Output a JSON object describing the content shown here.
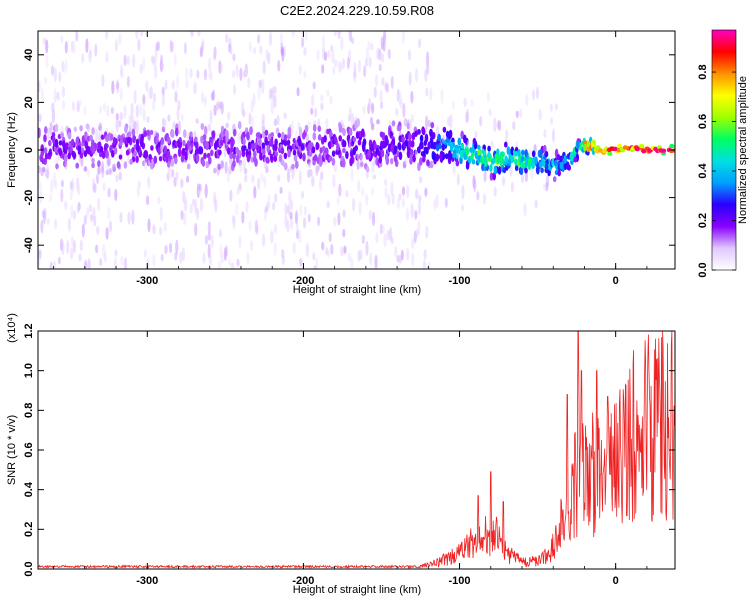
{
  "figure": {
    "title": "C2E2.2024.229.10.59.R08"
  },
  "chart_data": [
    {
      "type": "heatmap",
      "name": "spectrogram",
      "xlabel": "Height of straight line (km)",
      "ylabel": "Frequency (Hz)",
      "xlim": [
        -370,
        38
      ],
      "ylim": [
        -50,
        50
      ],
      "x_ticks": [
        -300,
        -200,
        -100,
        0
      ],
      "x_tick_labels": [
        "-300",
        "-200",
        "-100",
        "0"
      ],
      "y_ticks": [
        -40,
        -20,
        0,
        20,
        40
      ],
      "y_tick_labels": [
        "-40",
        "-20",
        "0",
        "20",
        "40"
      ],
      "colorbar": {
        "label": "Normalized spectral amplitude",
        "range": [
          0,
          0.97
        ],
        "ticks": [
          0.0,
          0.2,
          0.4,
          0.6,
          0.8
        ],
        "tick_labels": [
          "0.0",
          "0.2",
          "0.4",
          "0.6",
          "0.8"
        ],
        "colormap": [
          "#ffffff",
          "#e0c8ff",
          "#8800ff",
          "#2a00ff",
          "#00a0ff",
          "#00e0e0",
          "#00ff60",
          "#a0ff00",
          "#ffff00",
          "#ff9000",
          "#ff0000",
          "#ff00c0"
        ]
      },
      "ridge": [
        {
          "x": -370,
          "f": 1,
          "width": 8,
          "amp": 0.18
        },
        {
          "x": -300,
          "f": 1,
          "width": 8,
          "amp": 0.18
        },
        {
          "x": -200,
          "f": 1,
          "width": 8,
          "amp": 0.18
        },
        {
          "x": -130,
          "f": 2,
          "width": 8,
          "amp": 0.22
        },
        {
          "x": -110,
          "f": 2,
          "width": 6,
          "amp": 0.32
        },
        {
          "x": -100,
          "f": 0,
          "width": 5,
          "amp": 0.42
        },
        {
          "x": -90,
          "f": -2,
          "width": 4,
          "amp": 0.5
        },
        {
          "x": -80,
          "f": -5,
          "width": 4,
          "amp": 0.55
        },
        {
          "x": -70,
          "f": -3,
          "width": 4,
          "amp": 0.52
        },
        {
          "x": -60,
          "f": -5,
          "width": 4,
          "amp": 0.48
        },
        {
          "x": -50,
          "f": -5,
          "width": 4,
          "amp": 0.42
        },
        {
          "x": -40,
          "f": -7,
          "width": 4,
          "amp": 0.38
        },
        {
          "x": -30,
          "f": -4,
          "width": 3,
          "amp": 0.35
        },
        {
          "x": -25,
          "f": 1,
          "width": 2,
          "amp": 0.5
        },
        {
          "x": -20,
          "f": 2,
          "width": 2,
          "amp": 0.7
        },
        {
          "x": -10,
          "f": 0,
          "width": 1.5,
          "amp": 0.92
        },
        {
          "x": 0,
          "f": 0,
          "width": 1.5,
          "amp": 0.95
        },
        {
          "x": 5,
          "f": 1.5,
          "width": 1.5,
          "amp": 0.9
        },
        {
          "x": 10,
          "f": 1,
          "width": 1.5,
          "amp": 0.93
        },
        {
          "x": 20,
          "f": 0,
          "width": 1.5,
          "amp": 0.95
        },
        {
          "x": 38,
          "f": 0,
          "width": 1.5,
          "amp": 0.95
        }
      ]
    },
    {
      "type": "line",
      "name": "snr",
      "xlabel": "Height of straight line (km)",
      "ylabel": "SNR (10 * v/v)",
      "y_multiplier": "(x10⁴)",
      "xlim": [
        -370,
        38
      ],
      "ylim": [
        0,
        1.2
      ],
      "x_ticks": [
        -300,
        -200,
        -100,
        0
      ],
      "x_tick_labels": [
        "-300",
        "-200",
        "-100",
        "0"
      ],
      "y_ticks": [
        0.0,
        0.2,
        0.4,
        0.6,
        0.8,
        1.0,
        1.2
      ],
      "y_tick_labels": [
        "0.0",
        "0.2",
        "0.4",
        "0.6",
        "0.8",
        "1.0",
        "1.2"
      ],
      "color": "#ee2222",
      "envelope": [
        {
          "x": -370,
          "y": 0.01
        },
        {
          "x": -200,
          "y": 0.01
        },
        {
          "x": -130,
          "y": 0.01
        },
        {
          "x": -115,
          "y": 0.04
        },
        {
          "x": -100,
          "y": 0.1
        },
        {
          "x": -90,
          "y": 0.18
        },
        {
          "x": -80,
          "y": 0.25
        },
        {
          "x": -75,
          "y": 0.2
        },
        {
          "x": -70,
          "y": 0.1
        },
        {
          "x": -60,
          "y": 0.05
        },
        {
          "x": -50,
          "y": 0.05
        },
        {
          "x": -42,
          "y": 0.1
        },
        {
          "x": -35,
          "y": 0.3
        },
        {
          "x": -28,
          "y": 0.5
        },
        {
          "x": -22,
          "y": 0.72
        },
        {
          "x": -15,
          "y": 0.65
        },
        {
          "x": -8,
          "y": 0.55
        },
        {
          "x": 0,
          "y": 0.7
        },
        {
          "x": 10,
          "y": 0.85
        },
        {
          "x": 20,
          "y": 0.93
        },
        {
          "x": 30,
          "y": 0.97
        },
        {
          "x": 38,
          "y": 0.98
        }
      ],
      "spikes": [
        {
          "x": -80,
          "y": 0.49
        },
        {
          "x": -88,
          "y": 0.37
        },
        {
          "x": -72,
          "y": 0.34
        },
        {
          "x": -24,
          "y": 1.2
        },
        {
          "x": -22,
          "y": 1.0
        },
        {
          "x": -31,
          "y": 0.88
        },
        {
          "x": -12,
          "y": 1.0
        },
        {
          "x": -5,
          "y": 0.87
        }
      ]
    }
  ]
}
